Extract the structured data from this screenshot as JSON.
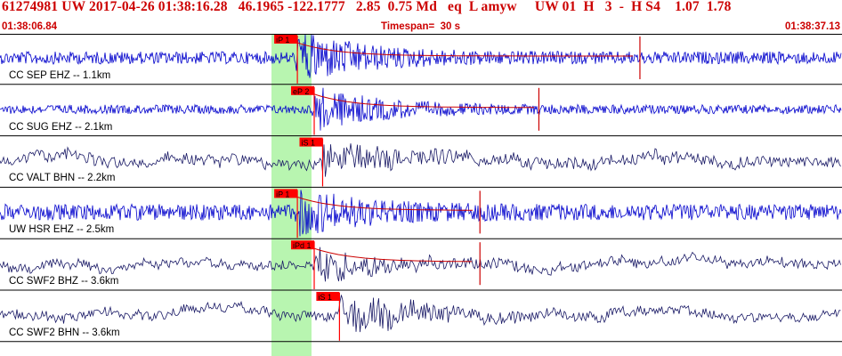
{
  "header": {
    "title": "61274981 UW 2017-04-26 01:38:16.28   46.1965 -122.1777   2.85  0.75 Md   eq  L amyw     UW 01  H   3  -  H S4    1.07  1.78",
    "start_time": "01:38:06.84",
    "timespan": "Timespan=  30 s",
    "end_time": "01:38:37.13"
  },
  "colors": {
    "header_text": "#cc0000",
    "pick_marker": "#ff0000",
    "pick_window": "#b8f5b0",
    "trace_blue": "#0000cc",
    "trace_navy": "#1a1a66",
    "coda_line": "#cc0000"
  },
  "traces": [
    {
      "label": "CC SEP EHZ -- 1.1km",
      "pick": "iP 1",
      "color": "blue",
      "noise": 7,
      "peak": 28,
      "onset": 0.35,
      "end_marker": 0.76
    },
    {
      "label": "CC SUG EHZ -- 2.1km",
      "pick": "eP 2",
      "color": "blue",
      "noise": 5,
      "peak": 24,
      "onset": 0.37,
      "end_marker": 0.64
    },
    {
      "label": "CC VALT BHN -- 2.2km",
      "pick": "iS 1",
      "color": "navy",
      "noise": 6,
      "peak": 20,
      "onset": 0.38,
      "end_marker": null
    },
    {
      "label": "UW HSR EHZ -- 2.5km",
      "pick": "iP 1",
      "color": "blue",
      "noise": 9,
      "peak": 22,
      "onset": 0.35,
      "end_marker": 0.57
    },
    {
      "label": "CC SWF2 BHZ -- 3.6km",
      "pick": "iPd 1",
      "color": "navy",
      "noise": 5,
      "peak": 20,
      "onset": 0.37,
      "end_marker": 0.57
    },
    {
      "label": "CC SWF2 BHN -- 3.6km",
      "pick": "iS 1",
      "color": "navy",
      "noise": 5,
      "peak": 22,
      "onset": 0.4,
      "end_marker": null
    }
  ]
}
